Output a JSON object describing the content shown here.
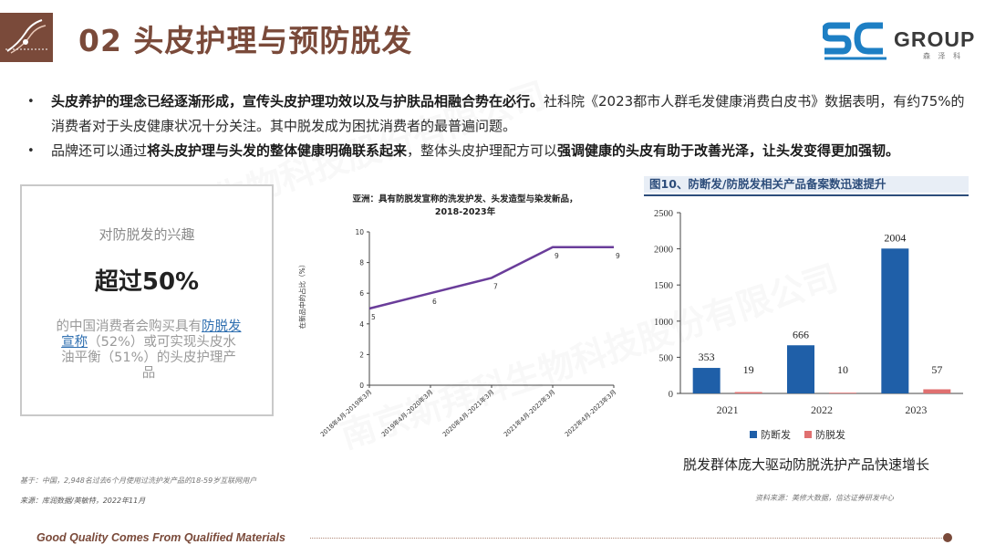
{
  "header": {
    "title": "02 头皮护理与预防脱发",
    "brand_mark": "SC",
    "brand_name": "GROUP",
    "brand_cn": "森 泽 科"
  },
  "bullets": [
    {
      "b1": "头皮养护的理念已经逐渐形成，宣传头皮护理功效以及与护肤品相融合势在必行。",
      "t1": "社科院《2023都市人群毛发健康消费白皮书》数据表明，有约75%的消费者对于头皮健康状况十分关注。其中脱发成为困扰消费者的最普遍问题。"
    },
    {
      "t1": "品牌还可以通过",
      "b1": "将头皮护理与头发的整体健康明确联系起来",
      "t2": "，整体头皮护理配方可以",
      "b2": "强调健康的头皮有助于改善光泽，让头发变得更加强韧。"
    }
  ],
  "stat_card": {
    "label": "对防脱发的兴趣",
    "value": "超过50%",
    "desc_pre": "的中国消费者会购买具有",
    "desc_hl": "防脱发宣称",
    "desc_post": "（52%）或可实现头皮水油平衡（51%）的头皮护理产品"
  },
  "notes": {
    "base": "基于：中国，2,948名过去6个月使用过洗护发产品的18-59岁互联网用户",
    "source": "来源：库润数据/英敏特，2022年11月",
    "chart2_source": "资料来源：美修大数据，信达证券研发中心"
  },
  "chart2_header": "图10、防断发/防脱发相关产品备案数迅速提升",
  "chart2_caption": "脱发群体庞大驱动防脱洗护产品快速增长",
  "footer": {
    "slogan": "Good Quality Comes From Qualified Materials"
  },
  "watermark": "南京斯拜科生物科技股份有限公司",
  "colors": {
    "brand": "#7a4a3a",
    "line": "#6a3d9a",
    "bar_blue": "#1f5fa8",
    "bar_red": "#e07070"
  },
  "chart_data": [
    {
      "type": "line",
      "title_line1": "亚洲：具有防脱发宣称的洗发护发、头发造型与染发新品，",
      "title_line2": "2018-2023年",
      "ylabel": "在新品中的占比（%）",
      "categories": [
        "2018年4月-2019年3月",
        "2019年4月-2020年3月",
        "2020年4月-2021年3月",
        "2021年4月-2022年3月",
        "2022年4月-2023年3月"
      ],
      "values": [
        5,
        6,
        7,
        9,
        9
      ],
      "yticks": [
        "0",
        "2",
        "4",
        "6",
        "8",
        "10"
      ],
      "ylim": [
        0,
        10
      ]
    },
    {
      "type": "bar",
      "categories": [
        "2021",
        "2022",
        "2023"
      ],
      "series": [
        {
          "name": "防断发",
          "values": [
            353,
            666,
            2004
          ]
        },
        {
          "name": "防脱发",
          "values": [
            19,
            10,
            57
          ]
        }
      ],
      "yticks": [
        "0",
        "500",
        "1000",
        "1500",
        "2000",
        "2500"
      ],
      "ylim": [
        0,
        2500
      ]
    }
  ]
}
